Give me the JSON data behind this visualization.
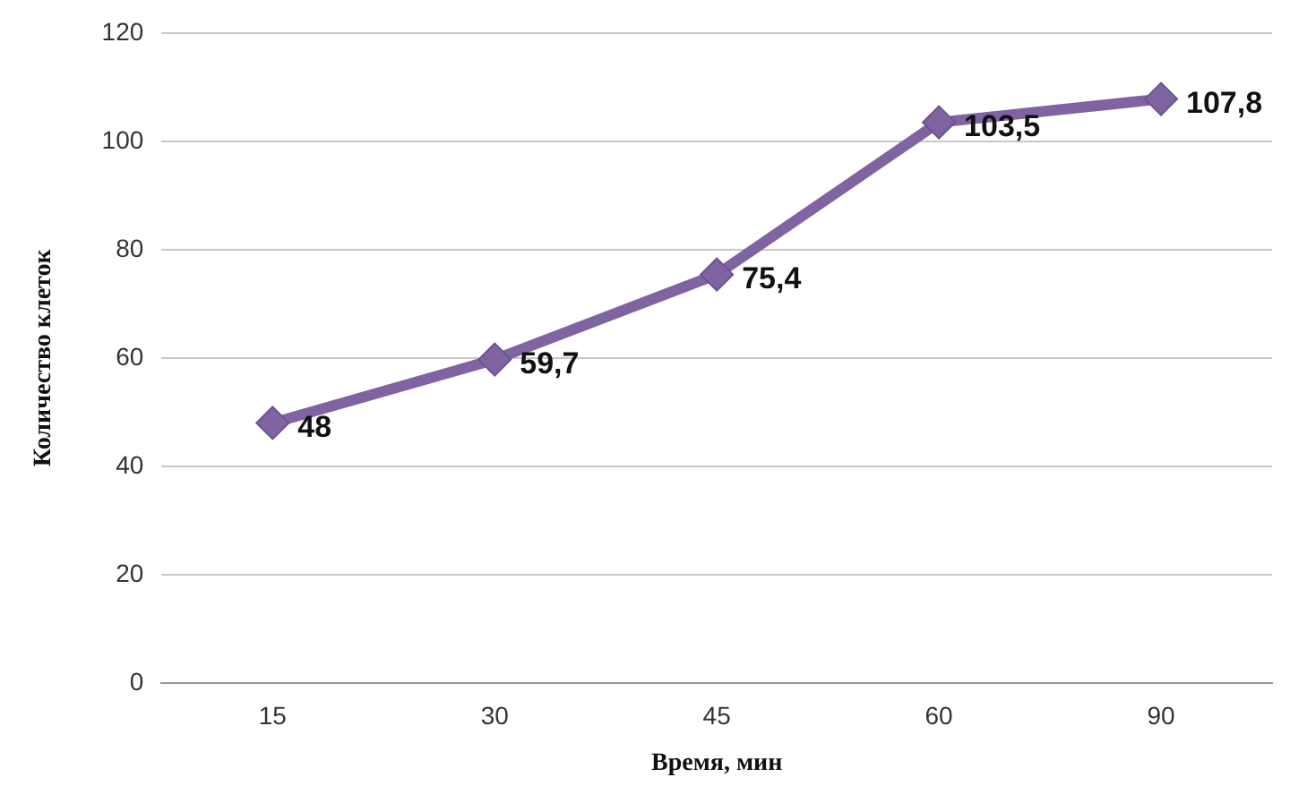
{
  "chart_data": {
    "type": "line",
    "xlabel": "Время, мин",
    "ylabel": "Количество клеток",
    "categories": [
      "15",
      "30",
      "45",
      "60",
      "90"
    ],
    "series": [
      {
        "color": "#8064a2",
        "values": [
          48,
          59.7,
          75.4,
          103.5,
          107.8
        ],
        "value_labels": [
          "48",
          "59,7",
          "75,4",
          "103,5",
          "107,8"
        ]
      }
    ],
    "ylim": [
      0,
      120
    ],
    "yticks": [
      0,
      20,
      40,
      60,
      80,
      100,
      120
    ],
    "grid": "y",
    "legend": false,
    "marker": "diamond",
    "line_style": "solid"
  }
}
